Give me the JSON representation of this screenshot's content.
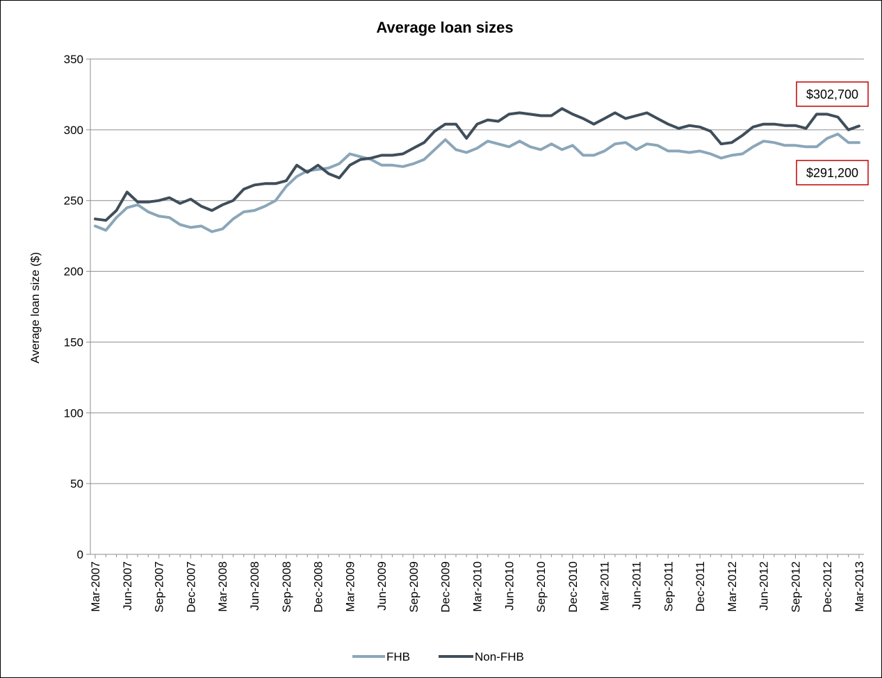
{
  "chart_data": {
    "type": "line",
    "title": "Average loan sizes",
    "xlabel": "",
    "ylabel": "Average loan size ($)",
    "ylim": [
      0,
      350
    ],
    "yticks": [
      0,
      50,
      100,
      150,
      200,
      250,
      300,
      350
    ],
    "grid": true,
    "legend_position": "bottom",
    "x_tick_labels": [
      "Mar-2007",
      "Jun-2007",
      "Sep-2007",
      "Dec-2007",
      "Mar-2008",
      "Jun-2008",
      "Sep-2008",
      "Dec-2008",
      "Mar-2009",
      "Jun-2009",
      "Sep-2009",
      "Dec-2009",
      "Mar-2010",
      "Jun-2010",
      "Sep-2010",
      "Dec-2010",
      "Mar-2011",
      "Jun-2011",
      "Sep-2011",
      "Dec-2011",
      "Mar-2012",
      "Jun-2012",
      "Sep-2012",
      "Dec-2012",
      "Mar-2013"
    ],
    "x_start": "Mar-2007",
    "x_end": "Mar-2013",
    "x_interval": "monthly",
    "series": [
      {
        "name": "FHB",
        "color": "#8BA6B9",
        "values": [
          232,
          229,
          238,
          245,
          247,
          242,
          239,
          238,
          233,
          231,
          232,
          228,
          230,
          237,
          242,
          243,
          246,
          250,
          260,
          267,
          271,
          272,
          273,
          276,
          283,
          281,
          279,
          275,
          275,
          274,
          276,
          279,
          286,
          293,
          286,
          284,
          287,
          292,
          290,
          288,
          292,
          288,
          286,
          290,
          286,
          289,
          282,
          282,
          285,
          290,
          291,
          286,
          290,
          289,
          285,
          285,
          284,
          285,
          283,
          280,
          282,
          283,
          288,
          292,
          291,
          289,
          289,
          288,
          288,
          294,
          297,
          291,
          291
        ],
        "callout": "$291,200"
      },
      {
        "name": "Non-FHB",
        "color": "#3F4E5A",
        "values": [
          237,
          236,
          243,
          256,
          249,
          249,
          250,
          252,
          248,
          251,
          246,
          243,
          247,
          250,
          258,
          261,
          262,
          262,
          264,
          275,
          270,
          275,
          269,
          266,
          275,
          279,
          280,
          282,
          282,
          283,
          287,
          291,
          299,
          304,
          304,
          294,
          304,
          307,
          306,
          311,
          312,
          311,
          310,
          310,
          315,
          311,
          308,
          304,
          308,
          312,
          308,
          310,
          312,
          308,
          304,
          301,
          303,
          302,
          299,
          290,
          291,
          296,
          302,
          304,
          304,
          303,
          303,
          301,
          311,
          311,
          309,
          300,
          302.7
        ],
        "callout": "$302,700"
      }
    ]
  }
}
